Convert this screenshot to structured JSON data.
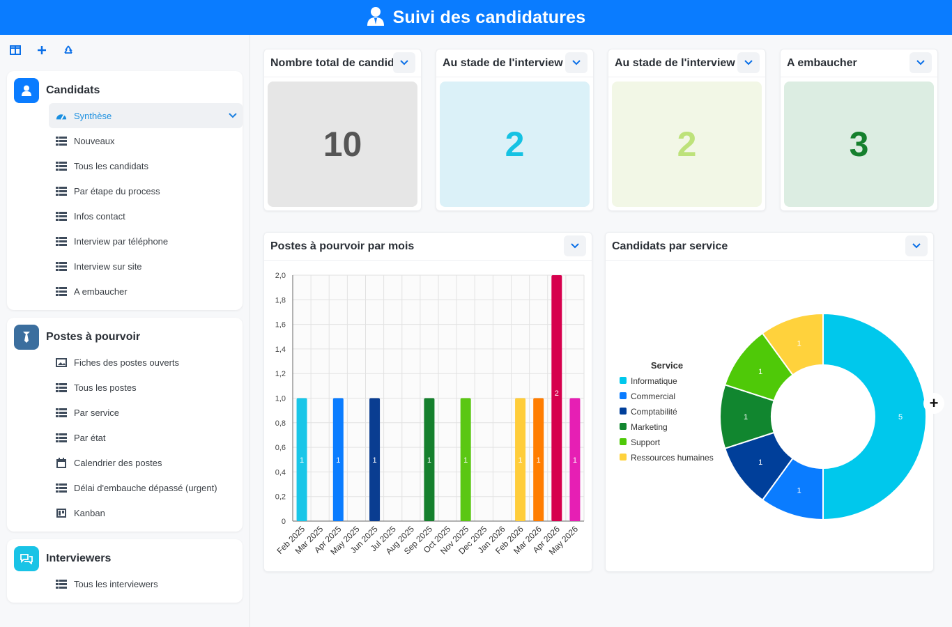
{
  "header": {
    "title": "Suivi des candidatures",
    "icon": "user-icon"
  },
  "toolbar": {
    "icons": [
      "layout-icon",
      "plus-icon",
      "recycle-icon"
    ]
  },
  "sidebar": {
    "groups": [
      {
        "title": "Candidats",
        "icon": "user-icon",
        "color": "#0a7cff",
        "items": [
          {
            "label": "Synthèse",
            "icon": "dashboard-icon",
            "active": true
          },
          {
            "label": "Nouveaux",
            "icon": "table-icon"
          },
          {
            "label": "Tous les candidats",
            "icon": "table-icon"
          },
          {
            "label": "Par étape du process",
            "icon": "table-icon"
          },
          {
            "label": "Infos contact",
            "icon": "table-icon"
          },
          {
            "label": "Interview par téléphone",
            "icon": "table-icon"
          },
          {
            "label": "Interview sur site",
            "icon": "table-icon"
          },
          {
            "label": "A embaucher",
            "icon": "table-icon"
          }
        ]
      },
      {
        "title": "Postes à pourvoir",
        "icon": "tie-icon",
        "color": "#3b6e9e",
        "items": [
          {
            "label": "Fiches des postes ouverts",
            "icon": "image-icon"
          },
          {
            "label": "Tous les postes",
            "icon": "table-icon"
          },
          {
            "label": "Par service",
            "icon": "table-icon"
          },
          {
            "label": "Par état",
            "icon": "table-icon"
          },
          {
            "label": "Calendrier des postes",
            "icon": "calendar-icon"
          },
          {
            "label": "Délai d'embauche dépassé (urgent)",
            "icon": "table-icon"
          },
          {
            "label": "Kanban",
            "icon": "kanban-icon"
          }
        ]
      },
      {
        "title": "Interviewers",
        "icon": "chat-icon",
        "color": "#19c3e6",
        "items": [
          {
            "label": "Tous les interviewers",
            "icon": "table-icon"
          }
        ]
      }
    ]
  },
  "kpis": [
    {
      "title": "Nombre total de candid",
      "value": "10",
      "bg": "#e6e6e6",
      "color": "#555555"
    },
    {
      "title": "Au stade de l'interview",
      "value": "2",
      "bg": "#dbf1f8",
      "color": "#15c2e3"
    },
    {
      "title": "Au stade de l'interview",
      "value": "2",
      "bg": "#f2f7e6",
      "color": "#bde27a"
    },
    {
      "title": "A embaucher",
      "value": "3",
      "bg": "#dcede2",
      "color": "#15802d"
    }
  ],
  "bar_card": {
    "title": "Postes à pourvoir par mois"
  },
  "pie_card": {
    "title": "Candidats par service"
  },
  "chart_data": [
    {
      "type": "bar",
      "title": "Postes à pourvoir par mois",
      "categories": [
        "Feb 2025",
        "Mar 2025",
        "Apr 2025",
        "May 2025",
        "Jun 2025",
        "Jul 2025",
        "Aug 2025",
        "Sep 2025",
        "Oct 2025",
        "Nov 2025",
        "Dec 2025",
        "Jan 2026",
        "Feb 2026",
        "Mar 2026",
        "Apr 2026",
        "May 2026"
      ],
      "values": [
        1,
        0,
        1,
        0,
        1,
        0,
        0,
        1,
        0,
        1,
        0,
        0,
        1,
        1,
        2,
        1
      ],
      "colors": [
        "#19c6e8",
        "#0a7cff",
        "#0a7cff",
        "#0a7cff",
        "#0a3d91",
        "#0a3d91",
        "#0a3d91",
        "#15802d",
        "#15802d",
        "#5bc713",
        "#5bc713",
        "#5bc713",
        "#ffcd3a",
        "#ff7d00",
        "#d6004d",
        "#e61fb4"
      ],
      "data_labels": [
        "1",
        "",
        "1",
        "",
        "1",
        "",
        "",
        "1",
        "",
        "1",
        "",
        "",
        "1",
        "1",
        "2",
        "1"
      ],
      "ylim": [
        0,
        2
      ],
      "yticks": [
        "0",
        "0,2",
        "0,4",
        "0,6",
        "0,8",
        "1,0",
        "1,2",
        "1,4",
        "1,6",
        "1,8",
        "2,0"
      ],
      "grid": true
    },
    {
      "type": "pie",
      "title": "Candidats par service",
      "legend_title": "Service",
      "legend_position": "left",
      "labels": [
        "Informatique",
        "Commercial",
        "Comptabilité",
        "Marketing",
        "Support",
        "Ressources humaines"
      ],
      "values": [
        5,
        1,
        1,
        1,
        1,
        1
      ],
      "colors": [
        "#00c8ec",
        "#0a7cff",
        "#003f9a",
        "#11862f",
        "#4fc908",
        "#ffd23c"
      ],
      "donut": true
    }
  ]
}
